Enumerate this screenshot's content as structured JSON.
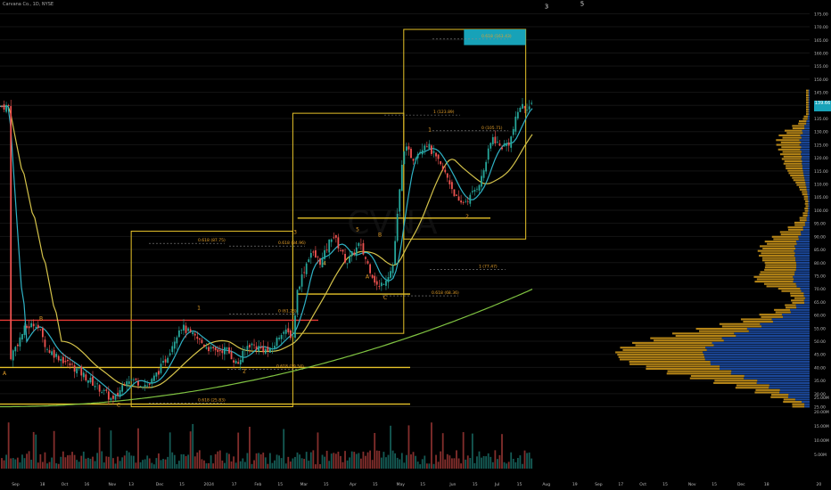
{
  "header": {
    "title": "Carvana Co., 1D, NYSE"
  },
  "watermark": "CVNA",
  "colors": {
    "background": "#000000",
    "up": "#26a69a",
    "down": "#ef5350",
    "box": "#e6c229",
    "ema_fast": "#d4c24a",
    "ema_mid": "#2fb2c5",
    "sma_slow": "#7fc241",
    "vp_buy": "#1e4fa8",
    "vp_sell": "#c8921a",
    "target": "#17a2b8",
    "level_red": "#e53935",
    "level_yellow": "#e6c229",
    "text_orange": "#e6a029"
  },
  "price_axis": {
    "ticks": [
      "175.00",
      "170.00",
      "165.00",
      "160.00",
      "155.00",
      "150.00",
      "145.00",
      "140.00",
      "135.00",
      "130.00",
      "125.00",
      "120.00",
      "115.00",
      "110.00",
      "105.00",
      "100.00",
      "95.00",
      "90.00",
      "85.00",
      "80.00",
      "75.00",
      "70.00",
      "65.00",
      "60.00",
      "55.00",
      "50.00",
      "45.00",
      "40.00",
      "35.00",
      "30.00",
      "25.00"
    ],
    "current_price": "139.66"
  },
  "volume_axis": {
    "ticks": [
      "25.00M",
      "20.00M",
      "15.00M",
      "10.00M",
      "5.00M"
    ]
  },
  "time_axis": {
    "labels": [
      "Sep",
      "18",
      "Oct",
      "16",
      "Nov",
      "13",
      "Dec",
      "15",
      "2024",
      "17",
      "Feb",
      "15",
      "Mar",
      "15",
      "Apr",
      "15",
      "May",
      "15",
      "Jun",
      "15",
      "Jul",
      "15",
      "Aug",
      "19",
      "Sep",
      "17",
      "Oct",
      "15",
      "Nov",
      "15",
      "Dec",
      "18",
      "20"
    ]
  },
  "chart_data": {
    "type": "candlestick",
    "title": "Carvana Co., 1D, NYSE",
    "ylim": [
      25,
      178
    ],
    "waypoints": [
      {
        "date": "2023-08-28",
        "close": 43
      },
      {
        "date": "2023-09-07",
        "close": 55
      },
      {
        "date": "2023-09-14",
        "close": 57
      },
      {
        "date": "2023-09-21",
        "close": 47
      },
      {
        "date": "2023-10-10",
        "close": 39
      },
      {
        "date": "2023-10-26",
        "close": 31
      },
      {
        "date": "2023-11-02",
        "close": 27
      },
      {
        "date": "2023-11-10",
        "close": 36
      },
      {
        "date": "2023-11-24",
        "close": 33
      },
      {
        "date": "2023-12-04",
        "close": 42
      },
      {
        "date": "2023-12-14",
        "close": 56
      },
      {
        "date": "2023-12-22",
        "close": 52
      },
      {
        "date": "2024-01-04",
        "close": 46
      },
      {
        "date": "2024-01-12",
        "close": 47
      },
      {
        "date": "2024-01-19",
        "close": 41
      },
      {
        "date": "2024-01-26",
        "close": 49
      },
      {
        "date": "2024-02-09",
        "close": 46
      },
      {
        "date": "2024-02-16",
        "close": 54
      },
      {
        "date": "2024-02-23",
        "close": 52
      },
      {
        "date": "2024-02-26",
        "close": 70
      },
      {
        "date": "2024-03-05",
        "close": 84
      },
      {
        "date": "2024-03-12",
        "close": 80
      },
      {
        "date": "2024-03-19",
        "close": 91
      },
      {
        "date": "2024-03-28",
        "close": 80
      },
      {
        "date": "2024-04-05",
        "close": 87
      },
      {
        "date": "2024-04-17",
        "close": 70
      },
      {
        "date": "2024-04-26",
        "close": 78
      },
      {
        "date": "2024-05-03",
        "close": 124
      },
      {
        "date": "2024-05-09",
        "close": 120
      },
      {
        "date": "2024-05-17",
        "close": 126
      },
      {
        "date": "2024-05-31",
        "close": 112
      },
      {
        "date": "2024-06-07",
        "close": 102
      },
      {
        "date": "2024-06-14",
        "close": 105
      },
      {
        "date": "2024-06-21",
        "close": 112
      },
      {
        "date": "2024-06-28",
        "close": 128
      },
      {
        "date": "2024-07-03",
        "close": 124
      },
      {
        "date": "2024-07-09",
        "close": 126
      },
      {
        "date": "2024-07-15",
        "close": 139.66
      }
    ],
    "volume_range_millions": [
      1,
      22
    ],
    "boxes": [
      {
        "from": "2023-11-13",
        "to": "2024-02-23",
        "price_low": 25,
        "price_high": 92
      },
      {
        "from": "2024-02-23",
        "to": "2024-05-03",
        "price_low": 53,
        "price_high": 137
      },
      {
        "from": "2024-05-03",
        "to": "2024-07-19",
        "price_low": 89,
        "price_high": 169
      }
    ],
    "target_zone": {
      "from": "2024-06-10",
      "to": "2024-07-19",
      "price_low": 163,
      "price_high": 169
    },
    "horizontal_levels": [
      {
        "price": 58,
        "color": "red"
      },
      {
        "price": 26,
        "color": "yellow"
      },
      {
        "price": 40,
        "color": "yellow"
      },
      {
        "price": 68,
        "color": "yellow"
      },
      {
        "price": 97,
        "color": "yellow"
      }
    ],
    "fib_labels": [
      {
        "text": "0.618 (87.75)",
        "price": 88
      },
      {
        "text": "0.618 (84.96)",
        "price": 87
      },
      {
        "text": "0 (61.23)",
        "price": 61
      },
      {
        "text": "0.618 (39.54)",
        "price": 40
      },
      {
        "text": "0.618 (25.83)",
        "price": 27
      },
      {
        "text": "0.618 (68.36)",
        "price": 68
      },
      {
        "text": "1 (77.47)",
        "price": 78
      },
      {
        "text": "0 (105.71)",
        "price": 131
      },
      {
        "text": "0.618 (163.43)",
        "price": 166
      },
      {
        "text": "1 (123.89)",
        "price": 137
      }
    ],
    "wave_labels": [
      {
        "text": "A",
        "price": 37
      },
      {
        "text": "B",
        "price": 58
      },
      {
        "text": "C",
        "price": 25
      },
      {
        "text": "1",
        "price": 62
      },
      {
        "text": "2",
        "price": 38
      },
      {
        "text": "3",
        "price": 91
      },
      {
        "text": "4",
        "price": 79
      },
      {
        "text": "5",
        "price": 92
      },
      {
        "text": "A",
        "price": 74
      },
      {
        "text": "B",
        "price": 90
      },
      {
        "text": "C",
        "price": 66
      },
      {
        "text": "1",
        "price": 130
      },
      {
        "text": "2",
        "price": 97
      },
      {
        "text": "3",
        "price": 177
      },
      {
        "text": "5",
        "price": 178
      }
    ]
  }
}
